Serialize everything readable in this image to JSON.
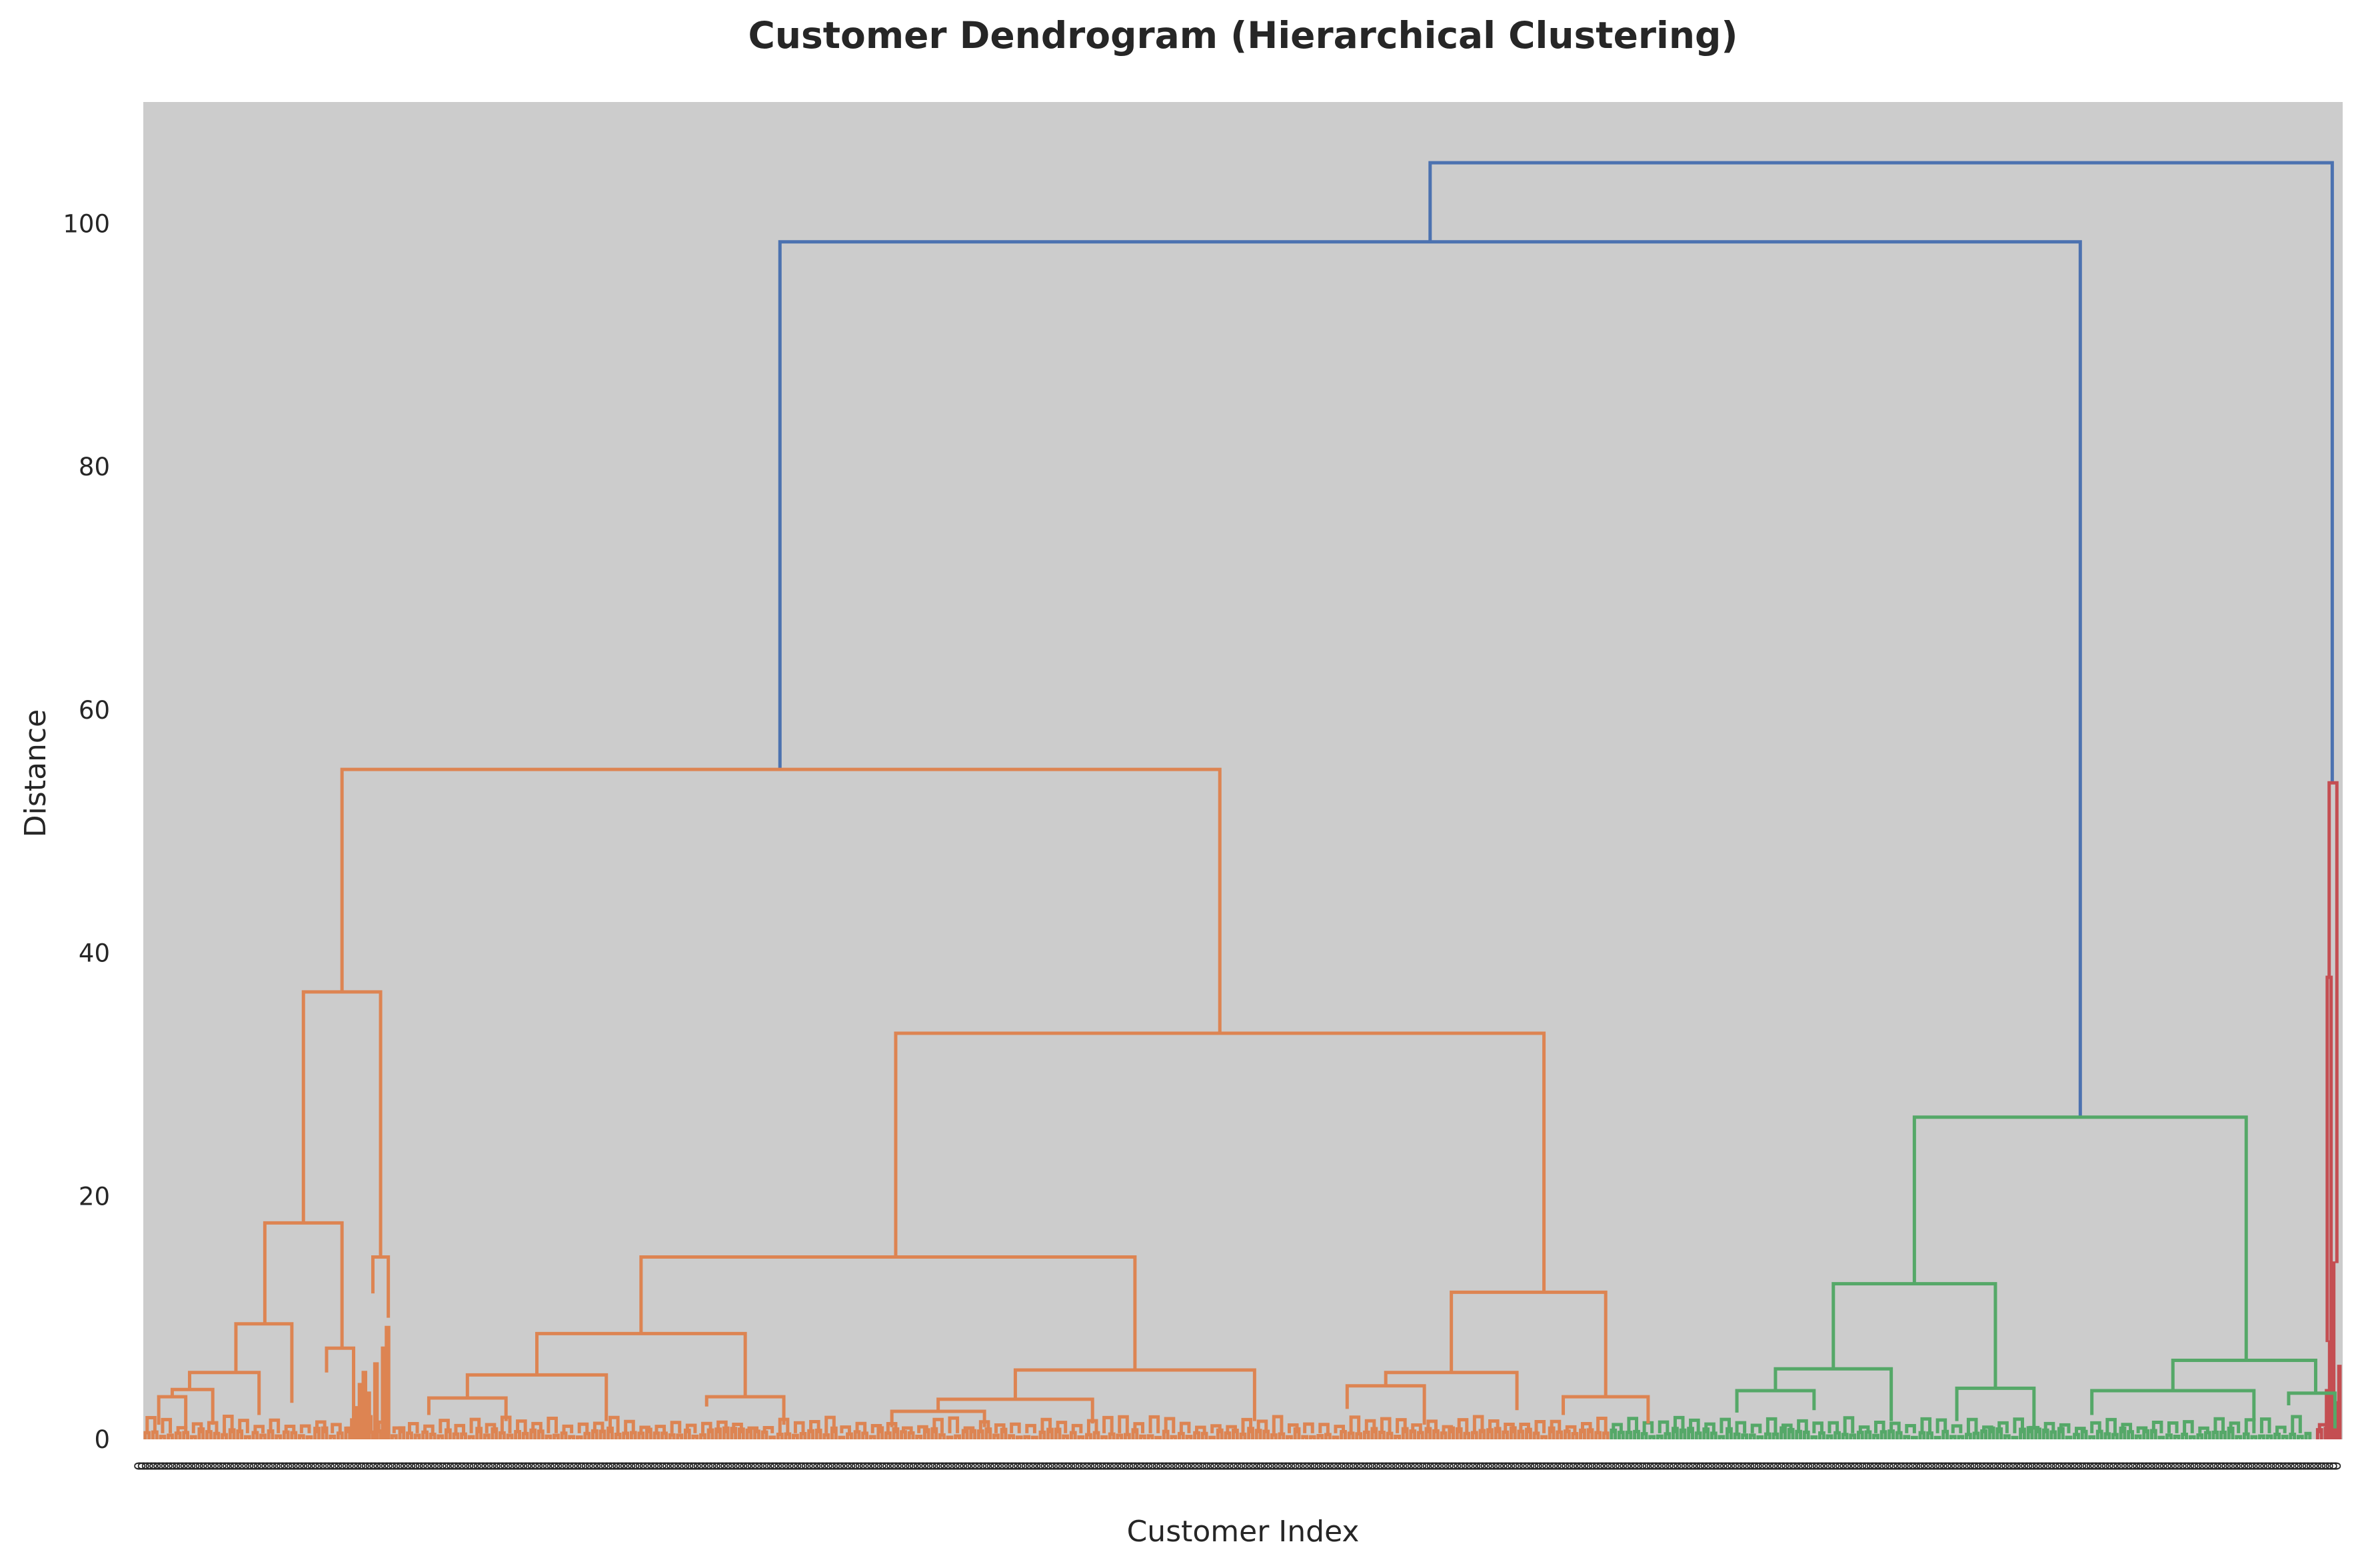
{
  "chart_data": {
    "type": "dendrogram",
    "title": "Customer Dendrogram (Hierarchical Clustering)",
    "xlabel": "Customer Index",
    "ylabel": "Distance",
    "ylim": [
      0,
      110
    ],
    "yticks": [
      0,
      20,
      40,
      60,
      80,
      100
    ],
    "grid": false,
    "background": "#cccccc",
    "colors": {
      "above_threshold": "#4c72b0",
      "cluster_1": "#dd8452",
      "cluster_2": "#55a868",
      "cluster_3": "#c44e52"
    },
    "leaf_count": 570,
    "leaf_tick_label": "0",
    "clusters": [
      {
        "name": "cluster_1",
        "color_key": "cluster_1",
        "leaf_range": [
          0,
          380
        ]
      },
      {
        "name": "cluster_2",
        "color_key": "cluster_2",
        "leaf_range": [
          380,
          563
        ]
      },
      {
        "name": "cluster_3",
        "color_key": "cluster_3",
        "leaf_range": [
          563,
          570
        ]
      }
    ],
    "merges": [
      {
        "id": "root",
        "color": "above_threshold",
        "height": 105.0,
        "left_x": 333.5,
        "right_x": 567.3,
        "left_child_h": 98.5,
        "right_child_h": 54.0
      },
      {
        "id": "upper",
        "color": "above_threshold",
        "height": 98.5,
        "left_x": 165.0,
        "right_x": 502.0,
        "left_child_h": 55.1,
        "right_child_h": 26.5
      },
      {
        "id": "orange_top",
        "color": "cluster_1",
        "height": 55.1,
        "left_x": 51.5,
        "right_x": 279.0,
        "left_child_h": 36.8,
        "right_child_h": 33.4
      },
      {
        "id": "o_left",
        "color": "cluster_1",
        "height": 36.8,
        "left_x": 41.5,
        "right_x": 61.5,
        "left_child_h": 17.8,
        "right_child_h": 15.0
      },
      {
        "id": "o_left_a",
        "color": "cluster_1",
        "height": 17.8,
        "left_x": 31.5,
        "right_x": 51.5,
        "left_child_h": 9.5,
        "right_child_h": 7.5
      },
      {
        "id": "o_left_a1",
        "color": "cluster_1",
        "height": 9.5,
        "left_x": 24.0,
        "right_x": 38.5,
        "left_child_h": 5.5,
        "right_child_h": 3.0
      },
      {
        "id": "o_left_a1a",
        "color": "cluster_1",
        "height": 5.5,
        "left_x": 12.0,
        "right_x": 30.0,
        "left_child_h": 4.1,
        "right_child_h": 2.0
      },
      {
        "id": "o_left_a1a1",
        "color": "cluster_1",
        "height": 4.1,
        "left_x": 7.5,
        "right_x": 18.0,
        "left_child_h": 3.5,
        "right_child_h": 1.2
      },
      {
        "id": "o_left_a1a1a",
        "color": "cluster_1",
        "height": 3.5,
        "left_x": 4.0,
        "right_x": 11.0,
        "left_child_h": 1.2,
        "right_child_h": 0.9
      },
      {
        "id": "o_left_a2",
        "color": "cluster_1",
        "height": 7.5,
        "left_x": 47.5,
        "right_x": 54.5,
        "left_child_h": 5.5,
        "right_child_h": 1.5
      },
      {
        "id": "o_left_b",
        "color": "cluster_1",
        "height": 15.0,
        "left_x": 59.5,
        "right_x": 63.5,
        "left_child_h": 12.0,
        "right_child_h": 10.0
      },
      {
        "id": "o_right",
        "color": "cluster_1",
        "height": 33.4,
        "left_x": 195.0,
        "right_x": 363.0,
        "left_child_h": 15.0,
        "right_child_h": 12.1
      },
      {
        "id": "o_r_a",
        "color": "cluster_1",
        "height": 15.0,
        "left_x": 129.0,
        "right_x": 257.0,
        "left_child_h": 8.7,
        "right_child_h": 5.7
      },
      {
        "id": "o_r_a1",
        "color": "cluster_1",
        "height": 8.7,
        "left_x": 102.0,
        "right_x": 156.0,
        "left_child_h": 5.3,
        "right_child_h": 3.5
      },
      {
        "id": "o_r_a1a",
        "color": "cluster_1",
        "height": 5.3,
        "left_x": 84.0,
        "right_x": 120.0,
        "left_child_h": 3.4,
        "right_child_h": 1.5
      },
      {
        "id": "o_r_a1a1",
        "color": "cluster_1",
        "height": 3.4,
        "left_x": 74.0,
        "right_x": 94.0,
        "left_child_h": 2.0,
        "right_child_h": 1.5
      },
      {
        "id": "o_r_a1b",
        "color": "cluster_1",
        "height": 3.5,
        "left_x": 146.0,
        "right_x": 166.0,
        "left_child_h": 2.7,
        "right_child_h": 1.2
      },
      {
        "id": "o_r_a2",
        "color": "cluster_1",
        "height": 5.7,
        "left_x": 226.0,
        "right_x": 288.0,
        "left_child_h": 3.3,
        "right_child_h": 1.5
      },
      {
        "id": "o_r_a2a",
        "color": "cluster_1",
        "height": 3.3,
        "left_x": 206.0,
        "right_x": 246.0,
        "left_child_h": 2.3,
        "right_child_h": 1.3
      },
      {
        "id": "o_r_a2a1",
        "color": "cluster_1",
        "height": 2.3,
        "left_x": 194.0,
        "right_x": 218.0,
        "left_child_h": 1.0,
        "right_child_h": 1.0
      },
      {
        "id": "o_r_b",
        "color": "cluster_1",
        "height": 12.1,
        "left_x": 339.0,
        "right_x": 379.0,
        "left_child_h": 5.5,
        "right_child_h": 3.5
      },
      {
        "id": "o_r_b1",
        "color": "cluster_1",
        "height": 5.5,
        "left_x": 322.0,
        "right_x": 356.0,
        "left_child_h": 4.4,
        "right_child_h": 2.4
      },
      {
        "id": "o_r_b1a",
        "color": "cluster_1",
        "height": 4.4,
        "left_x": 312.0,
        "right_x": 332.0,
        "left_child_h": 2.5,
        "right_child_h": 1.2
      },
      {
        "id": "o_r_b2",
        "color": "cluster_1",
        "height": 3.5,
        "left_x": 368.0,
        "right_x": 390.0,
        "left_child_h": 2.0,
        "right_child_h": 1.3
      },
      {
        "id": "green_top",
        "color": "cluster_2",
        "height": 26.5,
        "left_x": 459.0,
        "right_x": 545.0,
        "left_child_h": 12.8,
        "right_child_h": 6.5
      },
      {
        "id": "g_left",
        "color": "cluster_2",
        "height": 12.8,
        "left_x": 438.0,
        "right_x": 480.0,
        "left_child_h": 5.8,
        "right_child_h": 4.2
      },
      {
        "id": "g_left_a",
        "color": "cluster_2",
        "height": 5.8,
        "left_x": 423.0,
        "right_x": 453.0,
        "left_child_h": 4.0,
        "right_child_h": 1.5
      },
      {
        "id": "g_left_a1",
        "color": "cluster_2",
        "height": 4.0,
        "left_x": 413.0,
        "right_x": 433.0,
        "left_child_h": 2.2,
        "right_child_h": 2.4
      },
      {
        "id": "g_left_b",
        "color": "cluster_2",
        "height": 4.2,
        "left_x": 470.0,
        "right_x": 490.0,
        "left_child_h": 1.5,
        "right_child_h": 0.8
      },
      {
        "id": "g_right",
        "color": "cluster_2",
        "height": 6.5,
        "left_x": 526.0,
        "right_x": 563.0,
        "left_child_h": 4.0,
        "right_child_h": 3.8
      },
      {
        "id": "g_right_a",
        "color": "cluster_2",
        "height": 4.0,
        "left_x": 505.0,
        "right_x": 547.0,
        "left_child_h": 2.0,
        "right_child_h": 1.5
      },
      {
        "id": "g_right_b",
        "color": "cluster_2",
        "height": 3.8,
        "left_x": 556.0,
        "right_x": 568.0,
        "left_child_h": 2.8,
        "right_child_h": 0.9
      },
      {
        "id": "red_top",
        "color": "cluster_3",
        "height": 54.0,
        "left_x": 566.5,
        "right_x": 568.5,
        "left_child_h": 38.0,
        "right_child_h": 14.5
      },
      {
        "id": "red_sub",
        "color": "cluster_3",
        "height": 38.0,
        "left_x": 566.0,
        "right_x": 567.0,
        "left_child_h": 8.0,
        "right_child_h": 7.0
      }
    ]
  }
}
